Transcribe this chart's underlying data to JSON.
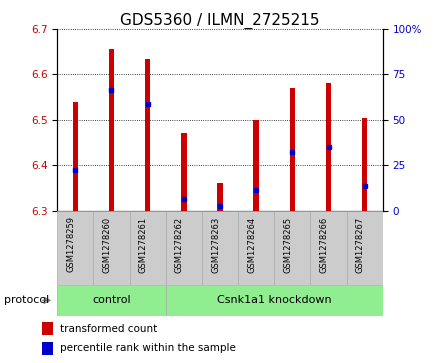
{
  "title": "GDS5360 / ILMN_2725215",
  "samples": [
    "GSM1278259",
    "GSM1278260",
    "GSM1278261",
    "GSM1278262",
    "GSM1278263",
    "GSM1278264",
    "GSM1278265",
    "GSM1278266",
    "GSM1278267"
  ],
  "bar_bottom": 6.3,
  "bar_tops": [
    6.54,
    6.655,
    6.635,
    6.47,
    6.36,
    6.5,
    6.57,
    6.58,
    6.505
  ],
  "blue_markers": [
    6.39,
    6.565,
    6.535,
    6.325,
    6.31,
    6.345,
    6.43,
    6.44,
    6.355
  ],
  "left_ylim": [
    6.3,
    6.7
  ],
  "left_yticks": [
    6.3,
    6.4,
    6.5,
    6.6,
    6.7
  ],
  "right_ylim": [
    0,
    100
  ],
  "right_yticks": [
    0,
    25,
    50,
    75,
    100
  ],
  "right_yticklabels": [
    "0",
    "25",
    "50",
    "75",
    "100%"
  ],
  "bar_color": "#cc0000",
  "marker_color": "#0000cc",
  "control_label": "control",
  "knockdown_label": "Csnk1a1 knockdown",
  "control_count": 3,
  "protocol_label": "protocol",
  "legend_items": [
    "transformed count",
    "percentile rank within the sample"
  ],
  "background_plot": "#ffffff",
  "background_xtick": "#cccccc",
  "background_group": "#90ee90",
  "title_fontsize": 11,
  "tick_fontsize": 7.5,
  "bar_width": 0.15
}
